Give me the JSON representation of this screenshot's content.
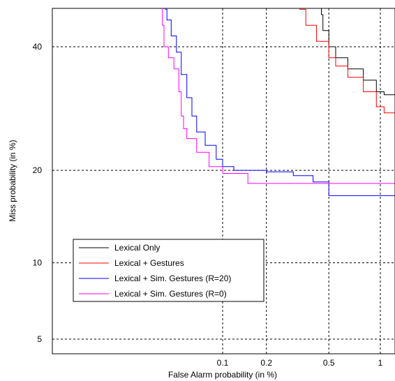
{
  "chart_data": {
    "type": "line",
    "title": "",
    "xlabel": "False Alarm probability (in %)",
    "ylabel": "Miss probability (in %)",
    "x_scale": "probit",
    "y_scale": "probit",
    "xlim": [
      0.01,
      1.2
    ],
    "ylim": [
      3.5,
      50
    ],
    "x_ticks": [
      {
        "value": 0.1,
        "label": "0.1"
      },
      {
        "value": 0.2,
        "label": "0.2"
      },
      {
        "value": 0.5,
        "label": "0.5"
      },
      {
        "value": 1,
        "label": "1"
      }
    ],
    "y_ticks": [
      {
        "value": 5,
        "label": "5"
      },
      {
        "value": 10,
        "label": "10"
      },
      {
        "value": 20,
        "label": "20"
      },
      {
        "value": 40,
        "label": "40"
      }
    ],
    "grid": true,
    "legend_position": "bottom-left",
    "series": [
      {
        "name": "Lexical Only",
        "color": "#000000",
        "points": [
          [
            0.45,
            50
          ],
          [
            0.46,
            46
          ],
          [
            0.5,
            43
          ],
          [
            0.55,
            40
          ],
          [
            0.65,
            38
          ],
          [
            0.8,
            36
          ],
          [
            0.95,
            34
          ],
          [
            1.05,
            32
          ],
          [
            1.2,
            31.5
          ]
        ]
      },
      {
        "name": "Lexical + Gestures",
        "color": "#ff0000",
        "points": [
          [
            0.33,
            50
          ],
          [
            0.36,
            47
          ],
          [
            0.42,
            44
          ],
          [
            0.5,
            41
          ],
          [
            0.55,
            38
          ],
          [
            0.65,
            36.5
          ],
          [
            0.8,
            34.5
          ],
          [
            0.95,
            32
          ],
          [
            1.05,
            29.5
          ],
          [
            1.2,
            28.5
          ]
        ]
      },
      {
        "name": "Lexical + Sim. Gestures (R=20)",
        "color": "#0000ff",
        "points": [
          [
            0.038,
            50
          ],
          [
            0.039,
            47
          ],
          [
            0.042,
            45
          ],
          [
            0.046,
            42
          ],
          [
            0.05,
            39
          ],
          [
            0.055,
            35
          ],
          [
            0.06,
            31
          ],
          [
            0.065,
            28
          ],
          [
            0.075,
            25.5
          ],
          [
            0.09,
            23.5
          ],
          [
            0.1,
            21.5
          ],
          [
            0.12,
            20.5
          ],
          [
            0.2,
            20
          ],
          [
            0.3,
            19.8
          ],
          [
            0.4,
            19.3
          ],
          [
            0.5,
            18.5
          ],
          [
            0.55,
            16.8
          ],
          [
            1.2,
            16.8
          ]
        ]
      },
      {
        "name": "Lexical + Sim. Gestures (R=0)",
        "color": "#ff00ff",
        "points": [
          [
            0.036,
            50
          ],
          [
            0.037,
            44
          ],
          [
            0.04,
            40
          ],
          [
            0.044,
            38
          ],
          [
            0.048,
            36
          ],
          [
            0.05,
            32
          ],
          [
            0.052,
            28
          ],
          [
            0.055,
            26
          ],
          [
            0.065,
            24.5
          ],
          [
            0.08,
            22.5
          ],
          [
            0.1,
            20.5
          ],
          [
            0.15,
            19.6
          ],
          [
            0.2,
            18.3
          ],
          [
            1.2,
            18.3
          ]
        ]
      }
    ]
  }
}
